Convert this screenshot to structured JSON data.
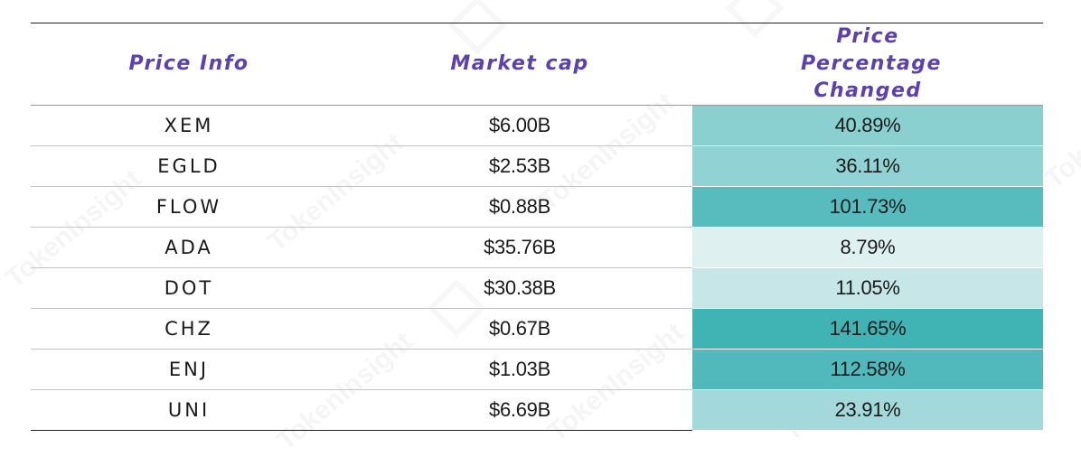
{
  "table": {
    "headers": [
      "Price Info",
      "Market cap",
      "Price Percentage Changed"
    ],
    "rows": [
      {
        "symbol": "XEM",
        "market_cap": "$6.00B",
        "pct_change": "40.89%"
      },
      {
        "symbol": "EGLD",
        "market_cap": "$2.53B",
        "pct_change": "36.11%"
      },
      {
        "symbol": "FLOW",
        "market_cap": "$0.88B",
        "pct_change": "101.73%"
      },
      {
        "symbol": "ADA",
        "market_cap": "$35.76B",
        "pct_change": "8.79%"
      },
      {
        "symbol": "DOT",
        "market_cap": "$30.38B",
        "pct_change": "11.05%"
      },
      {
        "symbol": "CHZ",
        "market_cap": "$0.67B",
        "pct_change": "141.65%"
      },
      {
        "symbol": "ENJ",
        "market_cap": "$1.03B",
        "pct_change": "112.58%"
      },
      {
        "symbol": "UNI",
        "market_cap": "$6.69B",
        "pct_change": "23.91%"
      }
    ],
    "colors": {
      "header_text": "#5b3fb3",
      "heat_low": "#dff0f1",
      "heat_high": "#40b3b5"
    }
  },
  "watermark": {
    "text": "TokenInsight"
  }
}
